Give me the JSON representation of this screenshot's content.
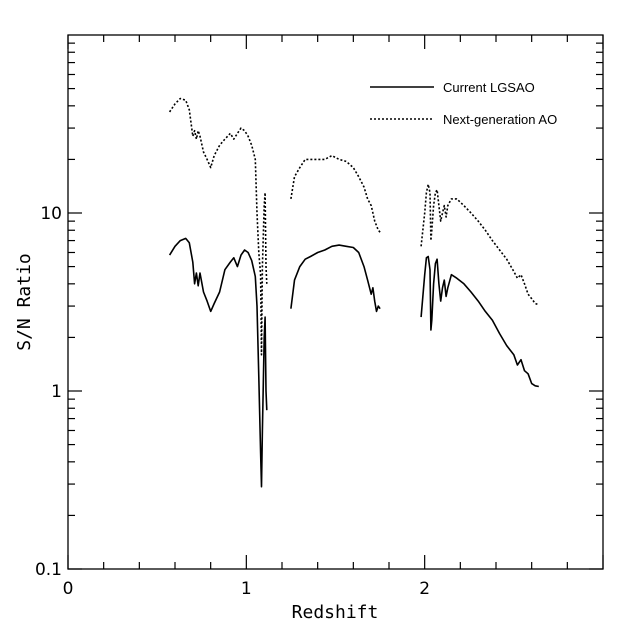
{
  "chart_data": {
    "type": "line",
    "title": "",
    "xlabel": "Redshift",
    "ylabel": "S/N Ratio",
    "xlim": [
      0,
      3.0
    ],
    "ylim": [
      0.1,
      100
    ],
    "yscale": "log",
    "grid": false,
    "legend": "top-right",
    "x_tick_labels": [
      "0",
      "1",
      "2"
    ],
    "x_tick_values": [
      0,
      1,
      2
    ],
    "y_tick_labels": [
      "0.1",
      "1",
      "10"
    ],
    "y_tick_values": [
      0.1,
      1,
      10
    ],
    "series": [
      {
        "name": "Current LGSAO",
        "style": "solid",
        "color": "#000000",
        "segments": [
          [
            [
              0.57,
              5.8
            ],
            [
              0.6,
              6.5
            ],
            [
              0.63,
              7.0
            ],
            [
              0.66,
              7.2
            ],
            [
              0.68,
              6.8
            ],
            [
              0.7,
              5.3
            ],
            [
              0.71,
              4.0
            ],
            [
              0.72,
              4.6
            ],
            [
              0.73,
              3.9
            ],
            [
              0.74,
              4.6
            ],
            [
              0.76,
              3.6
            ],
            [
              0.78,
              3.2
            ],
            [
              0.8,
              2.8
            ],
            [
              0.82,
              3.1
            ],
            [
              0.85,
              3.6
            ],
            [
              0.88,
              4.8
            ],
            [
              0.91,
              5.3
            ],
            [
              0.93,
              5.6
            ],
            [
              0.95,
              5.0
            ],
            [
              0.97,
              5.8
            ],
            [
              0.99,
              6.2
            ],
            [
              1.01,
              6.0
            ],
            [
              1.03,
              5.4
            ],
            [
              1.05,
              4.4
            ],
            [
              1.06,
              3.0
            ],
            [
              1.07,
              1.2
            ],
            [
              1.08,
              0.45
            ],
            [
              1.085,
              0.29
            ],
            [
              1.09,
              0.6
            ],
            [
              1.1,
              2.0
            ],
            [
              1.105,
              2.6
            ],
            [
              1.11,
              1.0
            ],
            [
              1.115,
              0.78
            ]
          ],
          [
            [
              1.25,
              2.9
            ],
            [
              1.27,
              4.2
            ],
            [
              1.3,
              5.0
            ],
            [
              1.33,
              5.5
            ],
            [
              1.36,
              5.7
            ],
            [
              1.4,
              6.0
            ],
            [
              1.44,
              6.2
            ],
            [
              1.48,
              6.5
            ],
            [
              1.52,
              6.6
            ],
            [
              1.56,
              6.5
            ],
            [
              1.6,
              6.4
            ],
            [
              1.63,
              6.0
            ],
            [
              1.66,
              5.0
            ],
            [
              1.68,
              4.2
            ],
            [
              1.7,
              3.5
            ],
            [
              1.71,
              3.8
            ],
            [
              1.72,
              3.2
            ],
            [
              1.73,
              2.8
            ],
            [
              1.74,
              3.0
            ],
            [
              1.75,
              2.9
            ]
          ],
          [
            [
              1.98,
              2.6
            ],
            [
              2.0,
              4.5
            ],
            [
              2.01,
              5.6
            ],
            [
              2.02,
              5.7
            ],
            [
              2.03,
              4.8
            ],
            [
              2.035,
              2.2
            ],
            [
              2.04,
              2.5
            ],
            [
              2.05,
              4.0
            ],
            [
              2.06,
              5.2
            ],
            [
              2.07,
              5.5
            ],
            [
              2.08,
              4.0
            ],
            [
              2.09,
              3.2
            ],
            [
              2.1,
              3.8
            ],
            [
              2.11,
              4.2
            ],
            [
              2.12,
              3.4
            ],
            [
              2.13,
              3.8
            ],
            [
              2.15,
              4.5
            ],
            [
              2.18,
              4.3
            ],
            [
              2.22,
              4.0
            ],
            [
              2.26,
              3.6
            ],
            [
              2.3,
              3.2
            ],
            [
              2.34,
              2.8
            ],
            [
              2.38,
              2.5
            ],
            [
              2.42,
              2.1
            ],
            [
              2.46,
              1.8
            ],
            [
              2.5,
              1.6
            ],
            [
              2.52,
              1.4
            ],
            [
              2.54,
              1.5
            ],
            [
              2.56,
              1.3
            ],
            [
              2.58,
              1.25
            ],
            [
              2.6,
              1.1
            ],
            [
              2.62,
              1.07
            ],
            [
              2.64,
              1.06
            ]
          ]
        ]
      },
      {
        "name": "Next-generation AO",
        "style": "dotted",
        "color": "#000000",
        "segments": [
          [
            [
              0.57,
              37
            ],
            [
              0.6,
              41
            ],
            [
              0.63,
              44
            ],
            [
              0.66,
              43
            ],
            [
              0.68,
              38
            ],
            [
              0.7,
              27
            ],
            [
              0.71,
              29
            ],
            [
              0.72,
              26
            ],
            [
              0.73,
              29
            ],
            [
              0.74,
              27
            ],
            [
              0.76,
              22
            ],
            [
              0.78,
              20
            ],
            [
              0.8,
              18
            ],
            [
              0.82,
              21
            ],
            [
              0.85,
              24
            ],
            [
              0.88,
              26
            ],
            [
              0.91,
              28
            ],
            [
              0.93,
              26
            ],
            [
              0.95,
              28
            ],
            [
              0.97,
              30
            ],
            [
              0.99,
              29
            ],
            [
              1.01,
              27
            ],
            [
              1.03,
              24
            ],
            [
              1.05,
              20
            ],
            [
              1.06,
              10
            ],
            [
              1.07,
              6
            ],
            [
              1.08,
              4.5
            ],
            [
              1.085,
              1.6
            ],
            [
              1.09,
              5
            ],
            [
              1.1,
              11
            ],
            [
              1.105,
              13
            ],
            [
              1.11,
              5
            ],
            [
              1.115,
              4
            ]
          ],
          [
            [
              1.25,
              12
            ],
            [
              1.27,
              16
            ],
            [
              1.3,
              18
            ],
            [
              1.33,
              20
            ],
            [
              1.36,
              20
            ],
            [
              1.4,
              20
            ],
            [
              1.44,
              20
            ],
            [
              1.48,
              21
            ],
            [
              1.52,
              20
            ],
            [
              1.56,
              19.5
            ],
            [
              1.6,
              18
            ],
            [
              1.63,
              16
            ],
            [
              1.66,
              14
            ],
            [
              1.68,
              12
            ],
            [
              1.7,
              11
            ],
            [
              1.71,
              10
            ],
            [
              1.72,
              9
            ],
            [
              1.73,
              8.5
            ],
            [
              1.74,
              8
            ],
            [
              1.75,
              7.8
            ]
          ],
          [
            [
              1.98,
              6.5
            ],
            [
              2.0,
              10
            ],
            [
              2.01,
              13
            ],
            [
              2.02,
              14.5
            ],
            [
              2.03,
              13
            ],
            [
              2.035,
              7
            ],
            [
              2.04,
              8
            ],
            [
              2.05,
              11
            ],
            [
              2.06,
              13
            ],
            [
              2.07,
              13.5
            ],
            [
              2.08,
              11
            ],
            [
              2.09,
              9
            ],
            [
              2.1,
              10
            ],
            [
              2.11,
              11
            ],
            [
              2.12,
              9.5
            ],
            [
              2.13,
              11
            ],
            [
              2.15,
              12
            ],
            [
              2.18,
              12
            ],
            [
              2.22,
              11
            ],
            [
              2.26,
              10
            ],
            [
              2.3,
              9
            ],
            [
              2.34,
              8
            ],
            [
              2.38,
              7
            ],
            [
              2.42,
              6.2
            ],
            [
              2.46,
              5.5
            ],
            [
              2.5,
              4.7
            ],
            [
              2.52,
              4.3
            ],
            [
              2.54,
              4.5
            ],
            [
              2.56,
              4
            ],
            [
              2.58,
              3.5
            ],
            [
              2.6,
              3.3
            ],
            [
              2.62,
              3.1
            ],
            [
              2.64,
              3.05
            ]
          ]
        ]
      }
    ]
  }
}
